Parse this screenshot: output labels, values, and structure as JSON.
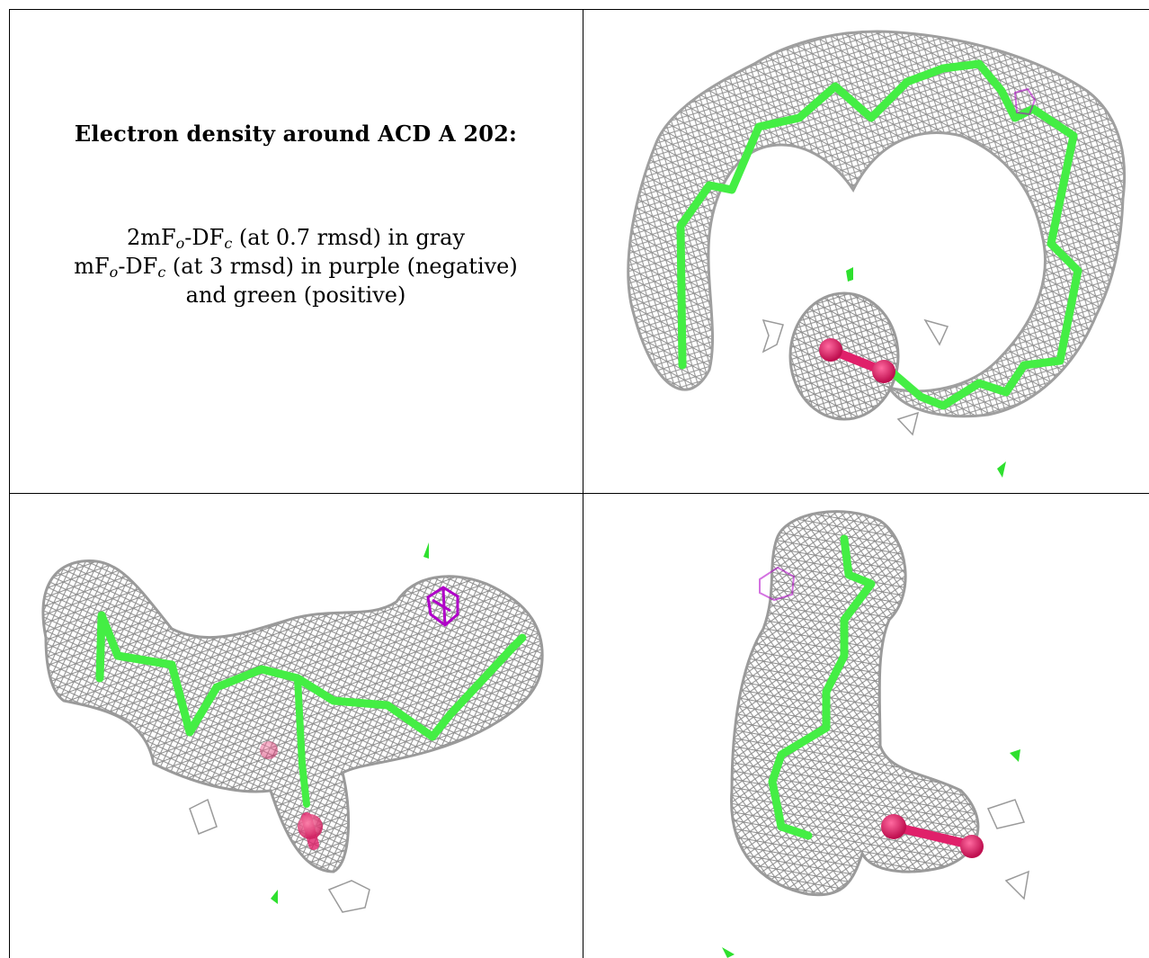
{
  "caption": {
    "title": "Electron density around ACD A 202:",
    "lines": [
      {
        "pre": "2mF",
        "sub1": "o",
        "mid": "-DF",
        "sub2": "c",
        "post": " (at 0.7 rmsd) in gray"
      },
      {
        "pre": "mF",
        "sub1": "o",
        "mid": "-DF",
        "sub2": "c",
        "post": " (at 3 rmsd) in purple (negative)"
      },
      {
        "pre": "",
        "sub1": "",
        "mid": "",
        "sub2": "",
        "post": "and green (positive)"
      }
    ]
  },
  "colors": {
    "mesh_2fofc": "#8c8c8c",
    "diff_negative": "#b000c8",
    "diff_positive": "#2ee02e",
    "model_carbon": "#44ee44",
    "model_oxygen": "#e0206a"
  },
  "panels": [
    {
      "name": "view-top-right",
      "description_shown": false
    },
    {
      "name": "view-bottom-left",
      "description_shown": false
    },
    {
      "name": "view-bottom-right",
      "description_shown": false
    }
  ]
}
